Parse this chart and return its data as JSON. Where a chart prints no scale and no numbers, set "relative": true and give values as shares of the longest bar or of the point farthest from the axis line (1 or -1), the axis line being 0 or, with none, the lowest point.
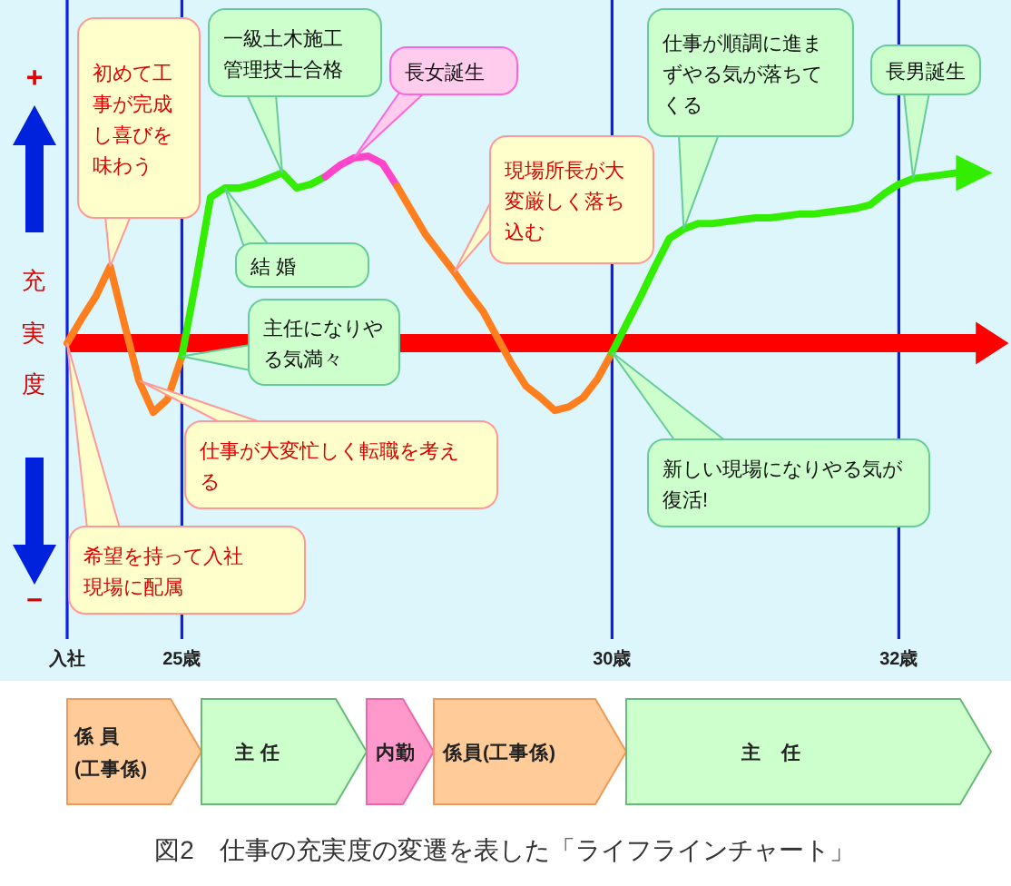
{
  "chart_data": {
    "type": "line",
    "relative": true,
    "ylabel": "充実度",
    "grid": "x",
    "categories": [
      "入社",
      null,
      null,
      null,
      null,
      null,
      null,
      null,
      "25歳",
      null,
      null,
      null,
      null,
      null,
      null,
      null,
      null,
      null,
      null,
      null,
      null,
      null,
      null,
      null,
      null,
      null,
      null,
      null,
      null,
      null,
      null,
      null,
      null,
      null,
      null,
      null,
      null,
      null,
      "30歳",
      null,
      null,
      null,
      null,
      null,
      null,
      null,
      null,
      null,
      null,
      null,
      null,
      null,
      null,
      null,
      null,
      null,
      null,
      null,
      "32歳",
      null,
      null,
      null,
      null,
      null
    ],
    "series": [
      {
        "color": "#ff7f1e",
        "values": [
          0,
          0.13,
          0.25,
          0.41,
          0.1,
          -0.2,
          -0.37,
          -0.3,
          -0.07,
          null,
          null,
          null,
          null,
          null,
          null,
          null,
          null,
          null,
          null,
          null,
          null,
          null,
          null,
          null,
          null,
          null,
          null,
          null,
          null,
          null,
          null,
          null,
          null,
          null,
          null,
          null,
          null,
          null,
          null,
          null,
          null,
          null,
          null,
          null,
          null,
          null,
          null,
          null,
          null,
          null,
          null,
          null,
          null,
          null,
          null,
          null,
          null,
          null,
          null,
          null,
          null,
          null,
          null,
          null
        ]
      },
      {
        "color": "#33ee00",
        "values": [
          null,
          null,
          null,
          null,
          null,
          null,
          null,
          null,
          -0.07,
          0.34,
          0.78,
          0.83,
          0.83,
          0.85,
          0.88,
          0.91,
          0.83,
          0.85,
          0.89,
          null,
          null,
          null,
          null,
          null,
          null,
          null,
          null,
          null,
          null,
          null,
          null,
          null,
          null,
          null,
          null,
          null,
          null,
          null,
          null,
          null,
          null,
          null,
          null,
          null,
          null,
          null,
          null,
          null,
          null,
          null,
          null,
          null,
          null,
          null,
          null,
          null,
          null,
          null,
          null,
          null,
          null,
          null,
          null,
          null
        ]
      },
      {
        "color": "#ff44cc",
        "values": [
          null,
          null,
          null,
          null,
          null,
          null,
          null,
          null,
          null,
          null,
          null,
          null,
          null,
          null,
          null,
          null,
          null,
          null,
          0.89,
          0.95,
          0.99,
          1,
          0.96,
          0.84,
          null,
          null,
          null,
          null,
          null,
          null,
          null,
          null,
          null,
          null,
          null,
          null,
          null,
          null,
          null,
          null,
          null,
          null,
          null,
          null,
          null,
          null,
          null,
          null,
          null,
          null,
          null,
          null,
          null,
          null,
          null,
          null,
          null,
          null,
          null,
          null,
          null,
          null,
          null,
          null
        ]
      },
      {
        "color": "#ff7f1e",
        "values": [
          null,
          null,
          null,
          null,
          null,
          null,
          null,
          null,
          null,
          null,
          null,
          null,
          null,
          null,
          null,
          null,
          null,
          null,
          null,
          null,
          null,
          null,
          null,
          0.84,
          0.71,
          0.58,
          0.48,
          0.38,
          0.27,
          0.17,
          0.03,
          -0.11,
          -0.23,
          -0.29,
          -0.36,
          -0.34,
          -0.29,
          -0.19,
          -0.05,
          null,
          null,
          null,
          null,
          null,
          null,
          null,
          null,
          null,
          null,
          null,
          null,
          null,
          null,
          null,
          null,
          null,
          null,
          null,
          null,
          null,
          null,
          null,
          null,
          null
        ]
      },
      {
        "color": "#33ee00",
        "values": [
          null,
          null,
          null,
          null,
          null,
          null,
          null,
          null,
          null,
          null,
          null,
          null,
          null,
          null,
          null,
          null,
          null,
          null,
          null,
          null,
          null,
          null,
          null,
          null,
          null,
          null,
          null,
          null,
          null,
          null,
          null,
          null,
          null,
          null,
          null,
          null,
          null,
          null,
          -0.05,
          0.1,
          0.25,
          0.41,
          0.56,
          0.61,
          0.64,
          0.64,
          0.65,
          0.66,
          0.67,
          0.67,
          0.68,
          0.69,
          0.69,
          0.7,
          0.71,
          0.72,
          0.74,
          0.8,
          0.85,
          0.88,
          0.89,
          0.9,
          0.91,
          0.91
        ]
      }
    ],
    "ref_lines": [
      {
        "axis": "y",
        "value": 0,
        "color": "#ff0000"
      }
    ],
    "annotations": [
      "+",
      "－",
      "初めて工事が完成し喜びを味わう",
      "希望を持って入社現場に配属",
      "仕事が大変忙しく転職を考える",
      "一級土木施工管理技士合格",
      "結 婚",
      "主任になりやる気満々",
      "長女誕生",
      "現場所長が大変厳しく落ち込む",
      "仕事が順調に進まずやる気が落ちてくる",
      "長男誕生",
      "新しい現場になりやる気が復活!",
      "係 員 (工事係)",
      "主 任",
      "内勤",
      "係員(工事係)",
      "主　任",
      "図2　仕事の充実度の変遷を表した「ライフラインチャート」"
    ]
  }
}
